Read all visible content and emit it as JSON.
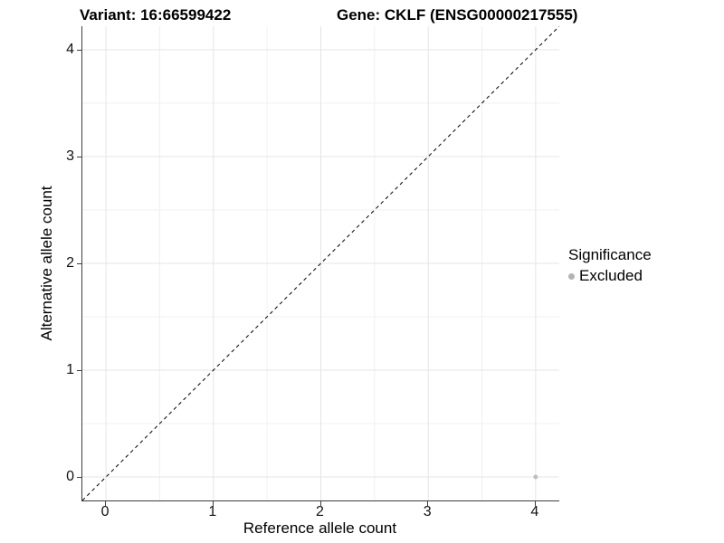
{
  "titles": {
    "variant": "Variant: 16:66599422",
    "gene": "Gene: CKLF (ENSG00000217555)"
  },
  "chart_data": {
    "type": "scatter",
    "title_left": "Variant: 16:66599422",
    "title_right": "Gene: CKLF (ENSG00000217555)",
    "xlabel": "Reference allele count",
    "ylabel": "Alternative allele count",
    "xlim": [
      -0.22,
      4.22
    ],
    "ylim": [
      -0.22,
      4.22
    ],
    "xticks": [
      0,
      1,
      2,
      3,
      4
    ],
    "yticks": [
      0,
      1,
      2,
      3,
      4
    ],
    "x_minor": [
      0.5,
      1.5,
      2.5,
      3.5
    ],
    "y_minor": [
      0.5,
      1.5,
      2.5,
      3.5
    ],
    "grid": true,
    "identity_line": {
      "type": "dashed",
      "color": "#000000",
      "from": [
        -0.22,
        -0.22
      ],
      "to": [
        4.22,
        4.22
      ]
    },
    "series": [
      {
        "name": "Excluded",
        "color": "#bebebe",
        "point_radius": 2.5,
        "points": [
          {
            "x": 4,
            "y": 0
          }
        ]
      }
    ],
    "legend": {
      "title": "Significance",
      "position": "right",
      "items": [
        {
          "label": "Excluded",
          "color": "#b3b3b3"
        }
      ]
    }
  },
  "colors": {
    "point": "#bebebe",
    "legend_dot": "#b3b3b3",
    "identity_line": "#000000"
  }
}
